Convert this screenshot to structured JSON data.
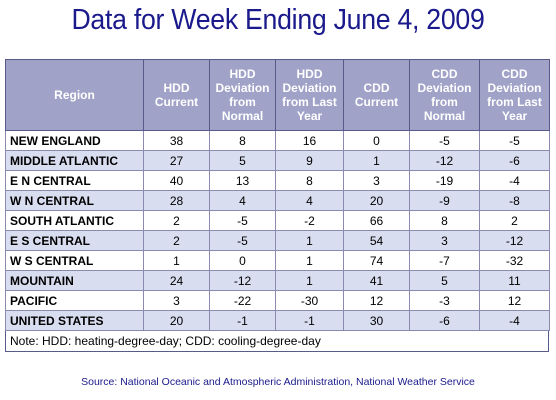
{
  "title": "Data for Week Ending June 4, 2009",
  "table": {
    "headers": [
      "Region",
      "HDD Current",
      "HDD Deviation from Normal",
      "HDD Deviation from Last Year",
      "CDD Current",
      "CDD Deviation from Normal",
      "CDD Deviation from Last Year"
    ],
    "rows": [
      [
        "NEW ENGLAND",
        "38",
        "8",
        "16",
        "0",
        "-5",
        "-5"
      ],
      [
        "MIDDLE ATLANTIC",
        "27",
        "5",
        "9",
        "1",
        "-12",
        "-6"
      ],
      [
        "E N CENTRAL",
        "40",
        "13",
        "8",
        "3",
        "-19",
        "-4"
      ],
      [
        "W N CENTRAL",
        "28",
        "4",
        "4",
        "20",
        "-9",
        "-8"
      ],
      [
        "SOUTH ATLANTIC",
        "2",
        "-5",
        "-2",
        "66",
        "8",
        "2"
      ],
      [
        "E S CENTRAL",
        "2",
        "-5",
        "1",
        "54",
        "3",
        "-12"
      ],
      [
        "W S CENTRAL",
        "1",
        "0",
        "1",
        "74",
        "-7",
        "-32"
      ],
      [
        "MOUNTAIN",
        "24",
        "-12",
        "1",
        "41",
        "5",
        "11"
      ],
      [
        "PACIFIC",
        "3",
        "-22",
        "-30",
        "12",
        "-3",
        "12"
      ],
      [
        "UNITED STATES",
        "20",
        "-1",
        "-1",
        "30",
        "-6",
        "-4"
      ]
    ]
  },
  "note": "Note: HDD: heating-degree-day; CDD: cooling-degree-day",
  "source": "Source:  National Oceanic and Atmospheric Administration, National Weather Service",
  "colors": {
    "title": "#1a1a8c",
    "header_bg": "#a0a2c8",
    "row_alt_bg": "#d8ddf0",
    "source_text": "#1a1a8c"
  }
}
